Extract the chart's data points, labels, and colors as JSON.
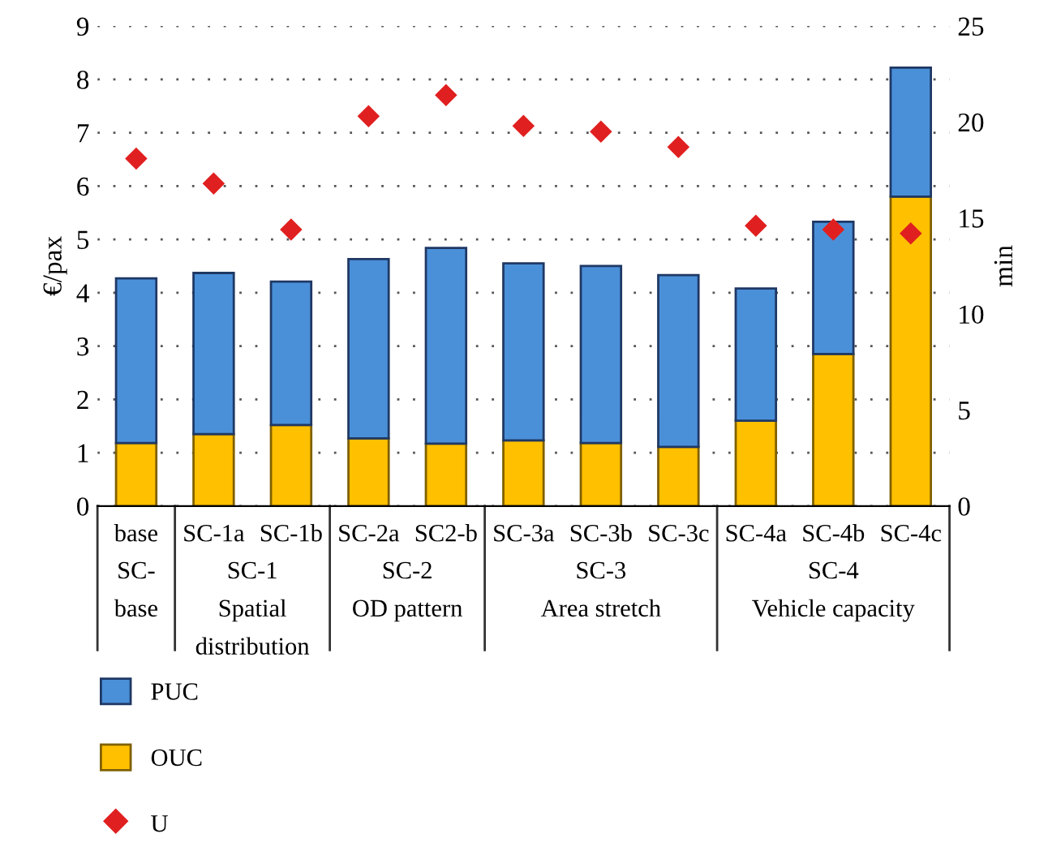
{
  "chart_data": {
    "type": "bar",
    "stacked": true,
    "categories": [
      "base",
      "SC-1a",
      "SC-1b",
      "SC-2a",
      "SC2-b",
      "SC-3a",
      "SC-3b",
      "SC-3c",
      "SC-4a",
      "SC-4b",
      "SC-4c"
    ],
    "series": [
      {
        "name": "OUC",
        "color": "#ffc000",
        "values": [
          1.18,
          1.35,
          1.52,
          1.27,
          1.17,
          1.23,
          1.18,
          1.11,
          1.6,
          2.85,
          5.8
        ]
      },
      {
        "name": "PUC",
        "color": "#4a90d9",
        "values": [
          3.09,
          3.02,
          2.69,
          3.36,
          3.67,
          3.32,
          3.32,
          3.22,
          2.48,
          2.48,
          2.42
        ]
      },
      {
        "name": "U",
        "type": "scatter",
        "axis": "y2",
        "color": "#e02020",
        "marker": "diamond",
        "values": [
          18.1,
          16.8,
          14.4,
          20.3,
          21.4,
          19.8,
          19.5,
          18.7,
          14.6,
          14.4,
          14.2
        ]
      }
    ],
    "ylabel": "€/pax",
    "y2label": "min",
    "ylim": [
      0,
      9
    ],
    "yticks": [
      0,
      1,
      2,
      3,
      4,
      5,
      6,
      7,
      8,
      9
    ],
    "y2lim": [
      0,
      25
    ],
    "y2ticks": [
      0,
      5,
      10,
      15,
      20,
      25
    ],
    "grid": "y",
    "legend": "bottom left",
    "annotations": [
      "SC-\nbase",
      "SC-1\nSpatial\ndistribution",
      "SC-2\nOD pattern",
      "SC-3\nArea stretch",
      "SC-4\nVehicle capacity"
    ]
  }
}
